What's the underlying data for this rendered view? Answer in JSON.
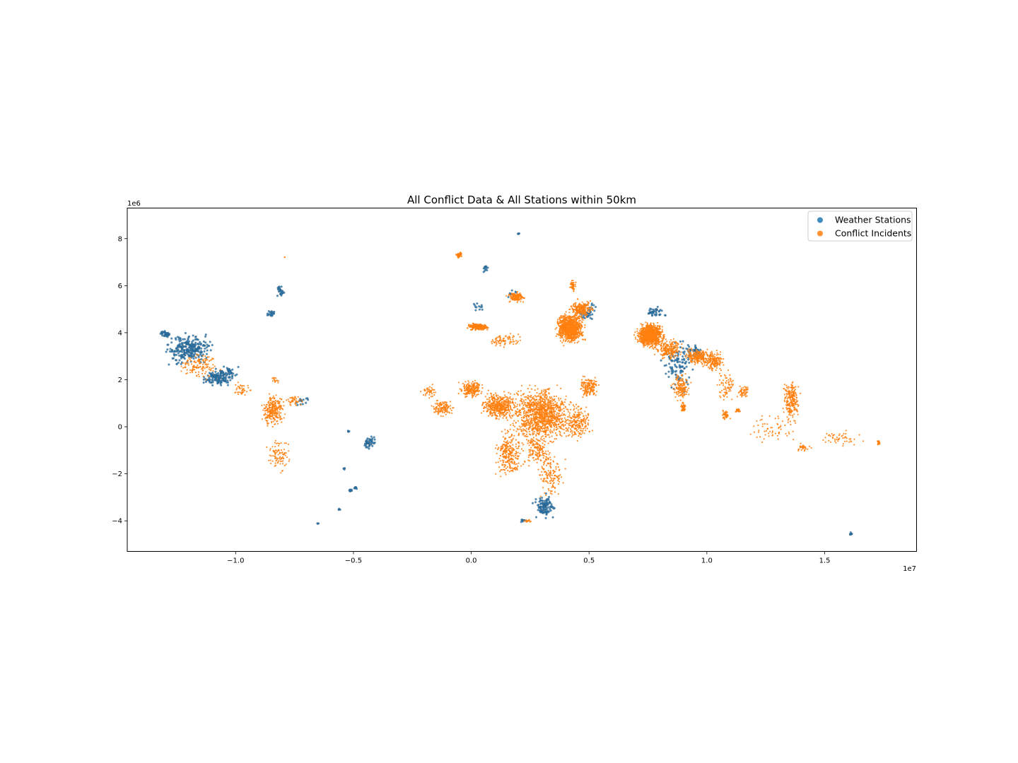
{
  "chart_data": {
    "type": "scatter",
    "title": "All Conflict Data & All Stations within 50km",
    "xlabel": "",
    "ylabel": "",
    "x_scale_label": "1e7",
    "y_scale_label": "1e6",
    "xlim": [
      -14600000,
      18900000
    ],
    "ylim": [
      -5300000,
      9300000
    ],
    "x_ticks": [
      -10000000,
      -5000000,
      0,
      5000000,
      10000000,
      15000000
    ],
    "x_tick_labels": [
      "−1.0",
      "−0.5",
      "0.0",
      "0.5",
      "1.0",
      "1.5"
    ],
    "y_ticks": [
      -4000000,
      -2000000,
      0,
      2000000,
      4000000,
      6000000,
      8000000
    ],
    "y_tick_labels": [
      "−4",
      "−2",
      "0",
      "2",
      "4",
      "6",
      "8"
    ],
    "grid": false,
    "legend_position": "top-right",
    "series": [
      {
        "name": "Weather Stations",
        "color": "#1f77b4",
        "clusters": [
          [
            -12000000,
            3300000,
            700000,
            450000,
            260
          ],
          [
            -10800000,
            2100000,
            400000,
            250000,
            120
          ],
          [
            -10300000,
            2300000,
            250000,
            180000,
            40
          ],
          [
            -13000000,
            3950000,
            150000,
            120000,
            30
          ],
          [
            -8100000,
            5800000,
            120000,
            200000,
            25
          ],
          [
            -8500000,
            4800000,
            150000,
            100000,
            20
          ],
          [
            -4300000,
            -650000,
            180000,
            180000,
            45
          ],
          [
            -5100000,
            -2700000,
            60000,
            50000,
            10
          ],
          [
            -4900000,
            -2600000,
            50000,
            40000,
            8
          ],
          [
            -5600000,
            -3500000,
            40000,
            40000,
            4
          ],
          [
            -6500000,
            -4100000,
            30000,
            30000,
            3
          ],
          [
            -5200000,
            -200000,
            40000,
            40000,
            4
          ],
          [
            -5400000,
            -1800000,
            40000,
            40000,
            4
          ],
          [
            3100000,
            -3400000,
            300000,
            350000,
            110
          ],
          [
            2200000,
            -4000000,
            80000,
            40000,
            10
          ],
          [
            8800000,
            2600000,
            500000,
            700000,
            110
          ],
          [
            7800000,
            4900000,
            300000,
            150000,
            40
          ],
          [
            4900000,
            4900000,
            300000,
            300000,
            45
          ],
          [
            16100000,
            -4550000,
            40000,
            40000,
            8
          ],
          [
            2000000,
            8200000,
            40000,
            40000,
            4
          ],
          [
            600000,
            6700000,
            150000,
            150000,
            12
          ],
          [
            300000,
            5100000,
            200000,
            150000,
            12
          ],
          [
            1700000,
            5700000,
            200000,
            150000,
            12
          ],
          [
            9500000,
            3200000,
            300000,
            200000,
            35
          ],
          [
            -7200000,
            1100000,
            250000,
            150000,
            15
          ]
        ]
      },
      {
        "name": "Conflict Incidents",
        "color": "#ff7f0e",
        "clusters": [
          [
            -11500000,
            2600000,
            600000,
            400000,
            130
          ],
          [
            -9800000,
            1600000,
            300000,
            200000,
            40
          ],
          [
            -8400000,
            700000,
            350000,
            450000,
            260
          ],
          [
            -7500000,
            1100000,
            300000,
            150000,
            40
          ],
          [
            -8200000,
            -1200000,
            350000,
            450000,
            90
          ],
          [
            -1800000,
            1500000,
            200000,
            200000,
            40
          ],
          [
            -1200000,
            800000,
            300000,
            250000,
            120
          ],
          [
            0,
            1600000,
            350000,
            250000,
            200
          ],
          [
            1200000,
            900000,
            500000,
            400000,
            450
          ],
          [
            3000000,
            500000,
            900000,
            800000,
            1100
          ],
          [
            5000000,
            1700000,
            300000,
            300000,
            150
          ],
          [
            4500000,
            200000,
            400000,
            500000,
            200
          ],
          [
            1600000,
            -1100000,
            400000,
            700000,
            260
          ],
          [
            2800000,
            -1000000,
            400000,
            500000,
            150
          ],
          [
            3400000,
            -2100000,
            400000,
            600000,
            130
          ],
          [
            2400000,
            -4000000,
            150000,
            60000,
            15
          ],
          [
            4200000,
            4200000,
            400000,
            450000,
            900
          ],
          [
            4700000,
            5000000,
            350000,
            250000,
            220
          ],
          [
            300000,
            4250000,
            300000,
            100000,
            240
          ],
          [
            1500000,
            3700000,
            500000,
            200000,
            80
          ],
          [
            1900000,
            5500000,
            250000,
            150000,
            140
          ],
          [
            -500000,
            7300000,
            100000,
            80000,
            45
          ],
          [
            4300000,
            6000000,
            100000,
            150000,
            45
          ],
          [
            7600000,
            3900000,
            400000,
            350000,
            900
          ],
          [
            8400000,
            3300000,
            400000,
            300000,
            200
          ],
          [
            9600000,
            3000000,
            350000,
            250000,
            200
          ],
          [
            10300000,
            2800000,
            300000,
            300000,
            180
          ],
          [
            8900000,
            1700000,
            250000,
            400000,
            140
          ],
          [
            9000000,
            800000,
            80000,
            150000,
            50
          ],
          [
            10800000,
            1700000,
            300000,
            500000,
            70
          ],
          [
            11600000,
            1500000,
            150000,
            200000,
            50
          ],
          [
            10800000,
            500000,
            120000,
            150000,
            50
          ],
          [
            11300000,
            700000,
            80000,
            80000,
            25
          ],
          [
            13600000,
            1100000,
            250000,
            600000,
            220
          ],
          [
            12800000,
            -100000,
            700000,
            400000,
            60
          ],
          [
            14100000,
            -900000,
            200000,
            120000,
            30
          ],
          [
            15700000,
            -500000,
            800000,
            250000,
            50
          ],
          [
            17300000,
            -700000,
            50000,
            80000,
            20
          ],
          [
            -8300000,
            2000000,
            150000,
            100000,
            15
          ],
          [
            -7900000,
            7200000,
            20000,
            20000,
            2
          ]
        ]
      }
    ]
  }
}
